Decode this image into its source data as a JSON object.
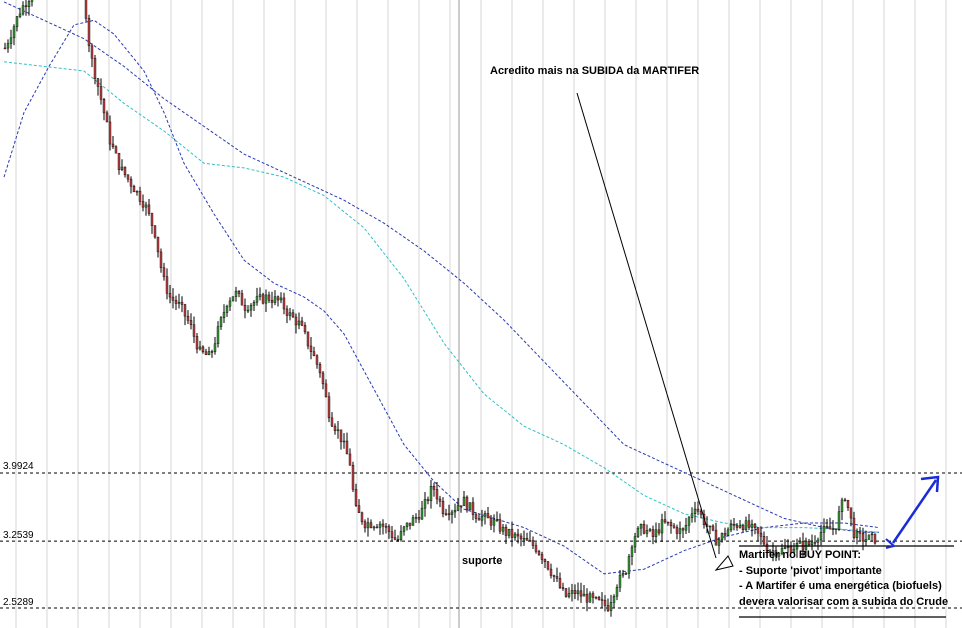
{
  "chart_data": {
    "type": "candlestick",
    "title": "",
    "levels": [
      {
        "name": "resistance",
        "value": 3.9924,
        "label": "3.9924"
      },
      {
        "name": "pivot",
        "value": 3.2539,
        "label": "3.2539"
      },
      {
        "name": "support-low",
        "value": 2.5289,
        "label": "2.5289"
      }
    ],
    "ylim": [
      2.5,
      9.4
    ],
    "grid": true,
    "annotations": {
      "top_note": "Acredito mais na SUBIDA da MARTIFER",
      "support_label": "suporte",
      "buy_point_lines": [
        "Martifer no BUY POINT:",
        "- Suporte 'pivot' importante",
        "- A Martifer é uma energética (biofuels)",
        "devera valorisar com a subida do Crude"
      ]
    },
    "price_path": [
      [
        0,
        8.6
      ],
      [
        15,
        9.0
      ],
      [
        30,
        9.25
      ],
      [
        45,
        9.2
      ],
      [
        60,
        9.3
      ],
      [
        78,
        9.3
      ],
      [
        85,
        8.55
      ],
      [
        95,
        8.1
      ],
      [
        105,
        7.6
      ],
      [
        115,
        7.3
      ],
      [
        125,
        7.15
      ],
      [
        140,
        6.9
      ],
      [
        150,
        6.6
      ],
      [
        158,
        6.1
      ],
      [
        165,
        5.9
      ],
      [
        175,
        5.8
      ],
      [
        185,
        5.6
      ],
      [
        195,
        5.3
      ],
      [
        205,
        5.25
      ],
      [
        215,
        5.6
      ],
      [
        222,
        5.85
      ],
      [
        230,
        5.95
      ],
      [
        240,
        5.8
      ],
      [
        250,
        5.85
      ],
      [
        262,
        5.9
      ],
      [
        275,
        5.85
      ],
      [
        285,
        5.7
      ],
      [
        295,
        5.6
      ],
      [
        305,
        5.35
      ],
      [
        315,
        5.1
      ],
      [
        325,
        4.6
      ],
      [
        335,
        4.4
      ],
      [
        345,
        4.1
      ],
      [
        350,
        3.6
      ],
      [
        360,
        3.45
      ],
      [
        375,
        3.45
      ],
      [
        385,
        3.35
      ],
      [
        392,
        3.25
      ],
      [
        400,
        3.4
      ],
      [
        410,
        3.5
      ],
      [
        418,
        3.6
      ],
      [
        428,
        3.85
      ],
      [
        438,
        3.6
      ],
      [
        448,
        3.6
      ],
      [
        458,
        3.7
      ],
      [
        470,
        3.55
      ],
      [
        480,
        3.5
      ],
      [
        490,
        3.45
      ],
      [
        500,
        3.35
      ],
      [
        510,
        3.3
      ],
      [
        520,
        3.25
      ],
      [
        530,
        3.2
      ],
      [
        540,
        3.05
      ],
      [
        550,
        2.85
      ],
      [
        560,
        2.65
      ],
      [
        570,
        2.7
      ],
      [
        580,
        2.65
      ],
      [
        590,
        2.6
      ],
      [
        603,
        2.55
      ],
      [
        612,
        2.8
      ],
      [
        620,
        2.9
      ],
      [
        628,
        3.3
      ],
      [
        638,
        3.4
      ],
      [
        648,
        3.3
      ],
      [
        658,
        3.45
      ],
      [
        668,
        3.4
      ],
      [
        678,
        3.35
      ],
      [
        690,
        3.65
      ],
      [
        700,
        3.45
      ],
      [
        712,
        3.25
      ],
      [
        725,
        3.4
      ],
      [
        735,
        3.45
      ],
      [
        745,
        3.4
      ],
      [
        755,
        3.3
      ],
      [
        765,
        3.15
      ],
      [
        775,
        3.15
      ],
      [
        790,
        3.2
      ],
      [
        805,
        3.22
      ],
      [
        815,
        3.35
      ],
      [
        830,
        3.4
      ],
      [
        840,
        3.75
      ],
      [
        850,
        3.3
      ],
      [
        860,
        3.28
      ],
      [
        872,
        3.28
      ]
    ],
    "series": [
      {
        "color": "#2a3bb0",
        "style": "dashed",
        "values": [
          [
            0,
            7.2
          ],
          [
            20,
            7.9
          ],
          [
            45,
            8.4
          ],
          [
            70,
            8.85
          ],
          [
            90,
            8.9
          ],
          [
            110,
            8.75
          ],
          [
            140,
            8.35
          ],
          [
            160,
            7.9
          ],
          [
            180,
            7.35
          ],
          [
            210,
            6.8
          ],
          [
            240,
            6.3
          ],
          [
            270,
            6.05
          ],
          [
            300,
            5.9
          ],
          [
            320,
            5.75
          ],
          [
            340,
            5.5
          ],
          [
            360,
            5.1
          ],
          [
            380,
            4.7
          ],
          [
            400,
            4.3
          ],
          [
            430,
            3.9
          ],
          [
            460,
            3.6
          ],
          [
            490,
            3.5
          ],
          [
            520,
            3.4
          ],
          [
            560,
            3.2
          ],
          [
            600,
            2.9
          ],
          [
            640,
            2.95
          ],
          [
            680,
            3.15
          ],
          [
            720,
            3.3
          ],
          [
            760,
            3.4
          ],
          [
            800,
            3.45
          ],
          [
            840,
            3.45
          ],
          [
            875,
            3.4
          ]
        ]
      },
      {
        "color": "#2a3bb0",
        "style": "dashed",
        "values": [
          [
            0,
            9.1
          ],
          [
            40,
            8.9
          ],
          [
            80,
            8.7
          ],
          [
            120,
            8.4
          ],
          [
            160,
            8.05
          ],
          [
            200,
            7.75
          ],
          [
            240,
            7.45
          ],
          [
            300,
            7.15
          ],
          [
            340,
            6.95
          ],
          [
            380,
            6.7
          ],
          [
            420,
            6.4
          ],
          [
            460,
            6.05
          ],
          [
            500,
            5.65
          ],
          [
            540,
            5.2
          ],
          [
            580,
            4.75
          ],
          [
            620,
            4.3
          ],
          [
            660,
            4.1
          ],
          [
            700,
            3.9
          ],
          [
            740,
            3.7
          ],
          [
            780,
            3.5
          ],
          [
            820,
            3.4
          ],
          [
            860,
            3.35
          ],
          [
            875,
            3.35
          ]
        ]
      },
      {
        "color": "#33c0c8",
        "style": "dashed",
        "values": [
          [
            0,
            8.45
          ],
          [
            40,
            8.4
          ],
          [
            80,
            8.35
          ],
          [
            120,
            8.0
          ],
          [
            160,
            7.7
          ],
          [
            200,
            7.35
          ],
          [
            240,
            7.3
          ],
          [
            280,
            7.2
          ],
          [
            320,
            7.0
          ],
          [
            360,
            6.65
          ],
          [
            400,
            6.1
          ],
          [
            440,
            5.4
          ],
          [
            480,
            4.85
          ],
          [
            520,
            4.5
          ],
          [
            560,
            4.3
          ],
          [
            600,
            4.05
          ],
          [
            640,
            3.75
          ],
          [
            680,
            3.55
          ],
          [
            720,
            3.45
          ],
          [
            760,
            3.4
          ],
          [
            800,
            3.4
          ],
          [
            840,
            3.38
          ],
          [
            875,
            3.35
          ]
        ]
      }
    ],
    "arrow_color": "#1a2bd8"
  }
}
